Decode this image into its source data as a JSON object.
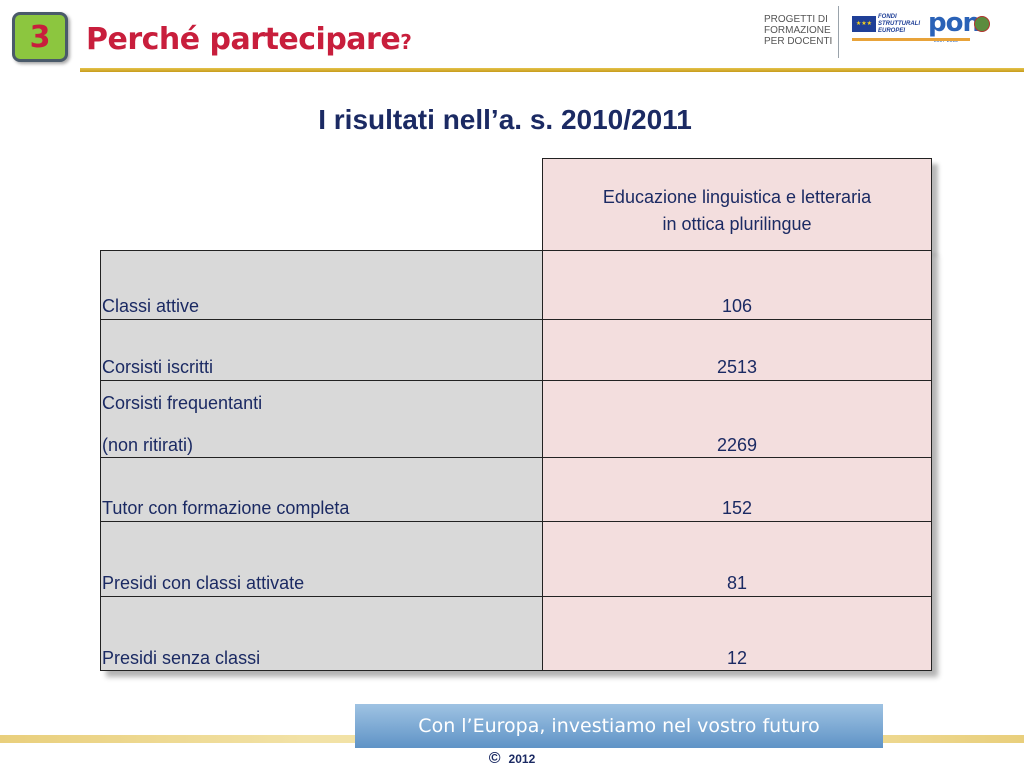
{
  "header": {
    "slide_number": "3",
    "title": "Perché partecipare",
    "title_suffix": "?"
  },
  "logos": {
    "progetti": "PROGETTI DI\nFORMAZIONE\nPER DOCENTI",
    "fondi": "FONDI\nSTRUTTURALI\nEUROPEI",
    "pon": "pon",
    "pon_years": "2007-2013",
    "eu_flag_icon": "eu-flag-icon",
    "emblem_icon": "italian-republic-emblem-icon"
  },
  "heading": "I risultati nell’a. s. 2010/2011",
  "table": {
    "column_header_line1": "Educazione linguistica e letteraria",
    "column_header_line2": "in ottica plurilingue",
    "rows": [
      {
        "label": "Classi attive",
        "value": "106"
      },
      {
        "label": "Corsisti iscritti",
        "value": "2513"
      },
      {
        "label_line1": "Corsisti frequentanti",
        "label": "(non ritirati)",
        "value": "2269"
      },
      {
        "label": "Tutor con formazione completa",
        "value": "152"
      },
      {
        "label": "Presidi con classi attivate",
        "value": "81"
      },
      {
        "label": "Presidi senza classi",
        "value": "12"
      }
    ]
  },
  "footer": {
    "banner": "Con l’Europa, investiamo nel vostro futuro",
    "copyright_symbol": "©",
    "year": "2012"
  },
  "colors": {
    "title": "#c81e3c",
    "badge": "#8cc63f",
    "text": "#1b2a63",
    "label_bg": "#d9d9d9",
    "value_bg": "#f3dede"
  }
}
